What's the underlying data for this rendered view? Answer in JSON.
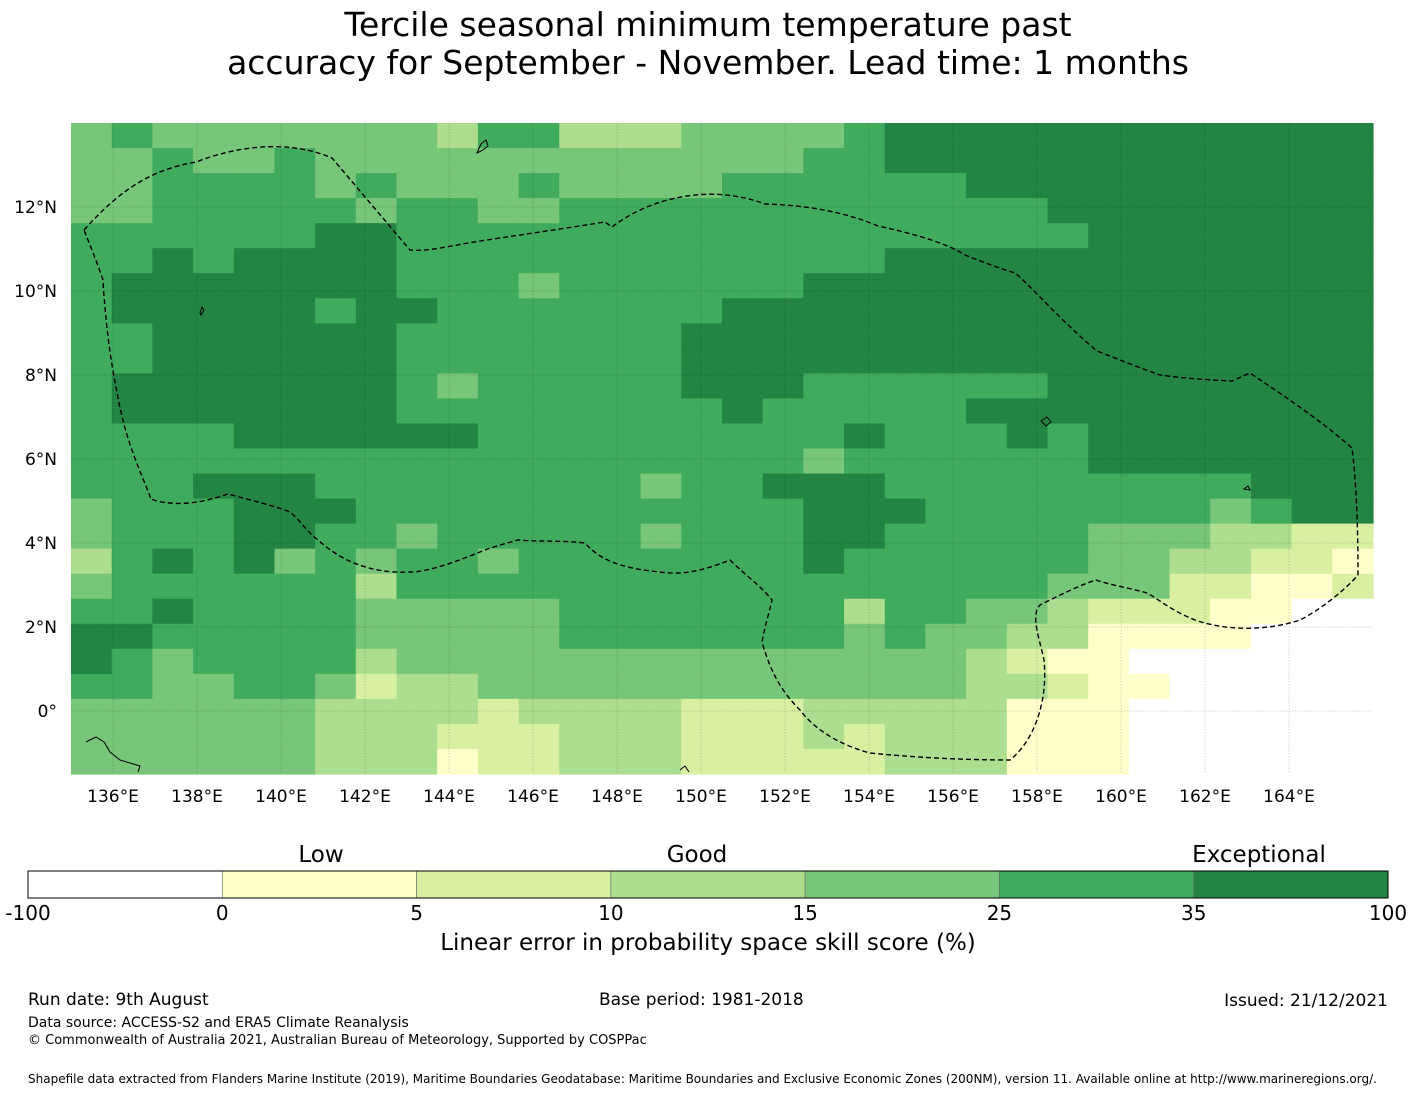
{
  "title": {
    "line1": "Tercile seasonal minimum temperature past",
    "line2": "accuracy for September - November. Lead time: 1 months"
  },
  "map": {
    "lon_labels": [
      "136°E",
      "138°E",
      "140°E",
      "142°E",
      "144°E",
      "146°E",
      "148°E",
      "150°E",
      "152°E",
      "154°E",
      "156°E",
      "158°E",
      "160°E",
      "162°E",
      "164°E"
    ],
    "lat_labels": [
      "12°N",
      "10°N",
      "8°N",
      "6°N",
      "4°N",
      "2°N",
      "0°"
    ],
    "lon_values": [
      136,
      138,
      140,
      142,
      144,
      146,
      148,
      150,
      152,
      154,
      156,
      158,
      160,
      162,
      164
    ],
    "lat_values": [
      12,
      10,
      8,
      6,
      4,
      2,
      0
    ],
    "lon_range": [
      135,
      166
    ],
    "lat_range": [
      -1.5,
      14
    ]
  },
  "colorbar": {
    "categories": [
      "Low",
      "Good",
      "Exceptional"
    ],
    "ticks": [
      "-100",
      "0",
      "5",
      "10",
      "15",
      "25",
      "35",
      "100"
    ],
    "colors": [
      "#ffffff",
      "#ffffcc",
      "#d9f0a3",
      "#addd8e",
      "#78c679",
      "#41ab5d",
      "#238443"
    ],
    "label": "Linear error in probability space skill score (%)"
  },
  "footer": {
    "run_date": "Run date: 9th August",
    "base_period": "Base period: 1981-2018",
    "issued": "Issued: 21/12/2021",
    "data_source": "Data source: ACCESS-S2 and ERA5 Climate Reanalysis",
    "copyright": "© Commonwealth of Australia 2021, Australian Bureau of Meteorology, Supported by COSPPac",
    "shapefile": "Shapefile data extracted from Flanders Marine Institute (2019), Maritime Boundaries Geodatabase: Maritime Boundaries and Exclusive Economic Zones (200NM), version 11. Available online at http://www.marineregions.org/."
  }
}
